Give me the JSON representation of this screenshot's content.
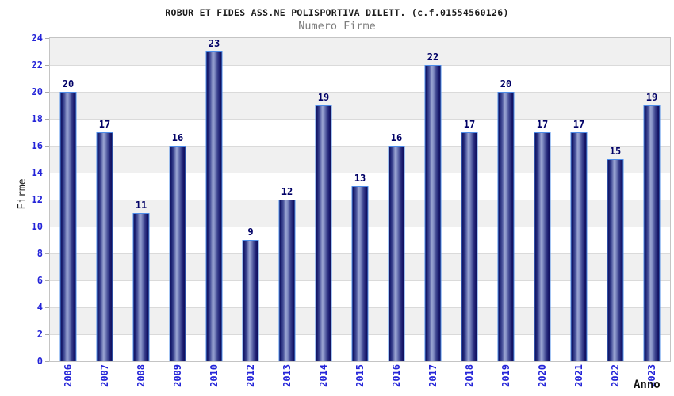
{
  "chart_data": {
    "type": "bar",
    "title": "ROBUR ET FIDES ASS.NE POLISPORTIVA DILETT. (c.f.01554560126)",
    "subtitle": "Numero Firme",
    "xlabel": "Anno",
    "ylabel": "Firme",
    "categories": [
      "2006",
      "2007",
      "2008",
      "2009",
      "2010",
      "2012",
      "2013",
      "2014",
      "2015",
      "2016",
      "2017",
      "2018",
      "2019",
      "2020",
      "2021",
      "2022",
      "2023"
    ],
    "values": [
      20,
      17,
      11,
      16,
      23,
      9,
      12,
      19,
      13,
      16,
      22,
      17,
      20,
      17,
      17,
      15,
      19
    ],
    "ylim": [
      0,
      24
    ],
    "ytick_step": 2,
    "grid": true,
    "legend_position": "none",
    "layout": {
      "bands_alternating": true,
      "bar_labels_shown": true,
      "x_labels_rotated_degrees": 90
    },
    "colors": {
      "title": "#1a1a1a",
      "subtitle": "#7d7d7d",
      "axis_tick_label": "#2424d8",
      "bar_value_label": "#000066",
      "bar_border": "#4d8ce8",
      "bar_dark": "#10105c",
      "bar_light": "#9aa4d2",
      "band_gray": "#f0f0f0",
      "band_white": "#ffffff",
      "gridline": "#dadada",
      "plot_border": "#c4c4c4",
      "y_axis_title": "#222222",
      "x_axis_title": "#101010"
    }
  }
}
